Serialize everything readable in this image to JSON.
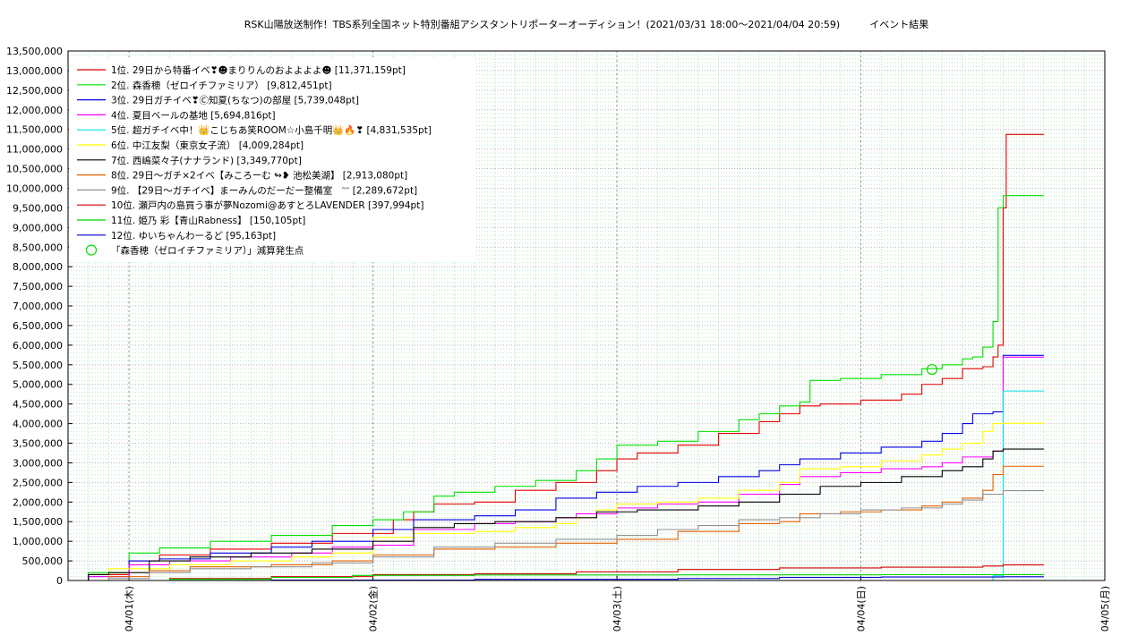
{
  "chart_data": {
    "type": "line",
    "title": "RSK山陽放送制作！TBS系列全国ネット特別番組アシスタントリポーターオーディション！(2021/03/31 18:00〜2021/04/04 20:59)　　　イベント結果",
    "xlabel": "",
    "ylabel": "",
    "x_ticks": [
      "04/01(木)",
      "04/02(金)",
      "04/03(土)",
      "04/04(日)",
      "04/05(月)"
    ],
    "x_range": [
      "2021/03/31 18:00",
      "2021/04/05 00:00"
    ],
    "ylim": [
      0,
      13500000
    ],
    "y_ticks": [
      "0",
      "500,000",
      "1,000,000",
      "1,500,000",
      "2,000,000",
      "2,500,000",
      "3,000,000",
      "3,500,000",
      "4,000,000",
      "4,500,000",
      "5,000,000",
      "5,500,000",
      "6,000,000",
      "6,500,000",
      "7,000,000",
      "7,500,000",
      "8,000,000",
      "8,500,000",
      "9,000,000",
      "9,500,000",
      "10,000,000",
      "10,500,000",
      "11,000,000",
      "11,500,000",
      "12,000,000",
      "12,500,000",
      "13,000,000",
      "13,500,000"
    ],
    "grid": true,
    "legend_position": "top-left",
    "series": [
      {
        "name": "1位. 29日から特番イベ❣☻まりりんのおよよよよ☻ [11,371,159pt]",
        "color": "#e00000",
        "points": [
          [
            0,
            0
          ],
          [
            2,
            150000
          ],
          [
            6,
            500000
          ],
          [
            9,
            650000
          ],
          [
            14,
            800000
          ],
          [
            20,
            950000
          ],
          [
            26,
            1200000
          ],
          [
            32,
            1550000
          ],
          [
            34,
            1750000
          ],
          [
            36,
            1950000
          ],
          [
            40,
            2000000
          ],
          [
            44,
            2300000
          ],
          [
            48,
            2500000
          ],
          [
            52,
            2800000
          ],
          [
            54,
            3100000
          ],
          [
            56,
            3250000
          ],
          [
            60,
            3450000
          ],
          [
            64,
            3750000
          ],
          [
            68,
            4050000
          ],
          [
            70,
            4250000
          ],
          [
            72,
            4450000
          ],
          [
            74,
            4500000
          ],
          [
            78,
            4600000
          ],
          [
            82,
            4750000
          ],
          [
            84,
            5000000
          ],
          [
            86,
            5150000
          ],
          [
            88,
            5400000
          ],
          [
            90,
            5450000
          ],
          [
            91,
            5700000
          ],
          [
            91.5,
            6000000
          ],
          [
            92,
            9500000
          ],
          [
            92.3,
            11371159
          ],
          [
            96,
            11371159
          ]
        ]
      },
      {
        "name": "2位. 森香穂（ゼロイチファミリア） [9,812,451pt]",
        "color": "#00e000",
        "points": [
          [
            0,
            0
          ],
          [
            2,
            200000
          ],
          [
            6,
            700000
          ],
          [
            9,
            830000
          ],
          [
            14,
            1000000
          ],
          [
            20,
            1150000
          ],
          [
            26,
            1400000
          ],
          [
            30,
            1550000
          ],
          [
            33,
            1750000
          ],
          [
            36,
            2150000
          ],
          [
            38,
            2250000
          ],
          [
            42,
            2400000
          ],
          [
            46,
            2550000
          ],
          [
            50,
            2800000
          ],
          [
            52,
            3100000
          ],
          [
            54,
            3450000
          ],
          [
            58,
            3550000
          ],
          [
            62,
            3800000
          ],
          [
            66,
            4100000
          ],
          [
            68,
            4250000
          ],
          [
            70,
            4450000
          ],
          [
            72,
            4550000
          ],
          [
            73,
            5100000
          ],
          [
            76,
            5150000
          ],
          [
            80,
            5250000
          ],
          [
            84,
            5400000
          ],
          [
            86,
            5500000
          ],
          [
            88,
            5650000
          ],
          [
            89,
            5700000
          ],
          [
            90,
            5950000
          ],
          [
            91,
            6600000
          ],
          [
            91.5,
            9500000
          ],
          [
            92,
            9812451
          ],
          [
            96,
            9812451
          ]
        ]
      },
      {
        "name": "3位. 29日ガチイベ❣Ⓒ知夏(ちなつ)の部屋 [5,739,048pt]",
        "color": "#0000e0",
        "points": [
          [
            0,
            0
          ],
          [
            2,
            100000
          ],
          [
            6,
            500000
          ],
          [
            9,
            550000
          ],
          [
            14,
            700000
          ],
          [
            20,
            850000
          ],
          [
            24,
            1000000
          ],
          [
            30,
            1300000
          ],
          [
            34,
            1550000
          ],
          [
            40,
            1650000
          ],
          [
            44,
            1800000
          ],
          [
            48,
            2100000
          ],
          [
            52,
            2250000
          ],
          [
            56,
            2400000
          ],
          [
            60,
            2500000
          ],
          [
            64,
            2650000
          ],
          [
            68,
            2800000
          ],
          [
            70,
            2950000
          ],
          [
            72,
            3100000
          ],
          [
            76,
            3250000
          ],
          [
            80,
            3400000
          ],
          [
            84,
            3550000
          ],
          [
            86,
            3750000
          ],
          [
            88,
            4000000
          ],
          [
            89,
            4250000
          ],
          [
            91,
            4300000
          ],
          [
            92,
            5739048
          ],
          [
            96,
            5739048
          ]
        ]
      },
      {
        "name": "4位. 夏目ベールの基地 [5,694,816pt]",
        "color": "#ff00ff",
        "points": [
          [
            0,
            0
          ],
          [
            2,
            100000
          ],
          [
            6,
            400000
          ],
          [
            10,
            500000
          ],
          [
            16,
            600000
          ],
          [
            22,
            700000
          ],
          [
            26,
            850000
          ],
          [
            30,
            900000
          ],
          [
            34,
            1300000
          ],
          [
            40,
            1450000
          ],
          [
            44,
            1500000
          ],
          [
            48,
            1600000
          ],
          [
            50,
            1700000
          ],
          [
            54,
            1850000
          ],
          [
            58,
            1950000
          ],
          [
            62,
            2000000
          ],
          [
            66,
            2200000
          ],
          [
            70,
            2450000
          ],
          [
            72,
            2650000
          ],
          [
            76,
            2750000
          ],
          [
            80,
            2850000
          ],
          [
            84,
            2900000
          ],
          [
            86,
            3000000
          ],
          [
            88,
            3150000
          ],
          [
            91,
            3300000
          ],
          [
            92,
            5694816
          ],
          [
            96,
            5694816
          ]
        ]
      },
      {
        "name": "5位. 超ガチイベ中！👑こじちあ笑ROOM☆小島千明👑🔥❣ [4,831,535pt]",
        "color": "#00e0e0",
        "points": [
          [
            0,
            0
          ],
          [
            91,
            120000
          ],
          [
            92,
            4831535
          ],
          [
            96,
            4831535
          ]
        ]
      },
      {
        "name": "6位. 中江友梨（東京女子流） [4,009,284pt]",
        "color": "#ffff00",
        "points": [
          [
            0,
            0
          ],
          [
            4,
            300000
          ],
          [
            10,
            400000
          ],
          [
            16,
            500000
          ],
          [
            22,
            600000
          ],
          [
            26,
            700000
          ],
          [
            30,
            1100000
          ],
          [
            34,
            1200000
          ],
          [
            40,
            1250000
          ],
          [
            44,
            1350000
          ],
          [
            48,
            1450000
          ],
          [
            50,
            1600000
          ],
          [
            52,
            1800000
          ],
          [
            54,
            1950000
          ],
          [
            58,
            2000000
          ],
          [
            62,
            2100000
          ],
          [
            66,
            2300000
          ],
          [
            70,
            2500000
          ],
          [
            72,
            2850000
          ],
          [
            76,
            2900000
          ],
          [
            80,
            3050000
          ],
          [
            84,
            3200000
          ],
          [
            86,
            3350000
          ],
          [
            88,
            3500000
          ],
          [
            90,
            3800000
          ],
          [
            91,
            4000000
          ],
          [
            92,
            4009284
          ],
          [
            96,
            4009284
          ]
        ]
      },
      {
        "name": "7位. 西嶋菜々子(ナナランド) [3,349,770pt]",
        "color": "#000000",
        "points": [
          [
            0,
            0
          ],
          [
            2,
            150000
          ],
          [
            4,
            200000
          ],
          [
            8,
            500000
          ],
          [
            12,
            600000
          ],
          [
            18,
            700000
          ],
          [
            24,
            800000
          ],
          [
            30,
            1000000
          ],
          [
            34,
            1350000
          ],
          [
            38,
            1450000
          ],
          [
            42,
            1500000
          ],
          [
            48,
            1600000
          ],
          [
            52,
            1750000
          ],
          [
            56,
            1800000
          ],
          [
            62,
            1900000
          ],
          [
            66,
            2000000
          ],
          [
            70,
            2200000
          ],
          [
            74,
            2400000
          ],
          [
            78,
            2500000
          ],
          [
            82,
            2650000
          ],
          [
            86,
            2800000
          ],
          [
            88,
            2900000
          ],
          [
            90,
            3100000
          ],
          [
            91,
            3300000
          ],
          [
            92,
            3349770
          ],
          [
            96,
            3349770
          ]
        ]
      },
      {
        "name": "8位. 29日〜ガチ×2イベ【みころーむ ↬❥ 池松美湖】 [2,913,080pt]",
        "color": "#e06000",
        "points": [
          [
            0,
            0
          ],
          [
            4,
            100000
          ],
          [
            8,
            250000
          ],
          [
            12,
            350000
          ],
          [
            20,
            400000
          ],
          [
            26,
            500000
          ],
          [
            30,
            650000
          ],
          [
            36,
            800000
          ],
          [
            42,
            850000
          ],
          [
            48,
            950000
          ],
          [
            54,
            1050000
          ],
          [
            60,
            1250000
          ],
          [
            66,
            1450000
          ],
          [
            70,
            1500000
          ],
          [
            72,
            1700000
          ],
          [
            76,
            1750000
          ],
          [
            80,
            1800000
          ],
          [
            84,
            1900000
          ],
          [
            86,
            2000000
          ],
          [
            88,
            2100000
          ],
          [
            90,
            2300000
          ],
          [
            91,
            2700000
          ],
          [
            92,
            2913080
          ],
          [
            96,
            2913080
          ]
        ]
      },
      {
        "name": "9位. 【29日〜ガチイベ】まーみんのだーだー整備室　ᵔᵔ [2,289,672pt]",
        "color": "#909090",
        "points": [
          [
            0,
            0
          ],
          [
            4,
            50000
          ],
          [
            8,
            200000
          ],
          [
            12,
            300000
          ],
          [
            18,
            350000
          ],
          [
            24,
            450000
          ],
          [
            30,
            600000
          ],
          [
            36,
            850000
          ],
          [
            42,
            950000
          ],
          [
            48,
            1050000
          ],
          [
            54,
            1150000
          ],
          [
            58,
            1300000
          ],
          [
            62,
            1400000
          ],
          [
            66,
            1550000
          ],
          [
            70,
            1600000
          ],
          [
            74,
            1700000
          ],
          [
            78,
            1800000
          ],
          [
            82,
            1850000
          ],
          [
            86,
            1950000
          ],
          [
            88,
            2050000
          ],
          [
            90,
            2200000
          ],
          [
            92,
            2289672
          ],
          [
            96,
            2289672
          ]
        ]
      },
      {
        "name": "10位. 瀬戸内の島買う事が夢Nozomi@あすとろLAVENDER [397,994pt]",
        "color": "#d00000",
        "points": [
          [
            0,
            0
          ],
          [
            10,
            50000
          ],
          [
            20,
            100000
          ],
          [
            30,
            150000
          ],
          [
            40,
            170000
          ],
          [
            50,
            220000
          ],
          [
            60,
            280000
          ],
          [
            70,
            320000
          ],
          [
            80,
            340000
          ],
          [
            90,
            370000
          ],
          [
            92,
            397994
          ],
          [
            96,
            397994
          ]
        ]
      },
      {
        "name": "11位. 姫乃 彩【青山Rabness】 [150,105pt]",
        "color": "#00d000",
        "points": [
          [
            0,
            0
          ],
          [
            10,
            30000
          ],
          [
            20,
            80000
          ],
          [
            28,
            130000
          ],
          [
            40,
            140000
          ],
          [
            60,
            145000
          ],
          [
            80,
            148000
          ],
          [
            92,
            150105
          ],
          [
            96,
            150105
          ]
        ]
      },
      {
        "name": "12位. ゆいちゃんわーるど [95,163pt]",
        "color": "#0000d0",
        "points": [
          [
            0,
            0
          ],
          [
            20,
            10000
          ],
          [
            40,
            30000
          ],
          [
            60,
            50000
          ],
          [
            70,
            80000
          ],
          [
            80,
            90000
          ],
          [
            92,
            95163
          ],
          [
            96,
            95163
          ]
        ]
      }
    ],
    "annotation": {
      "label": "「森香穂（ゼロイチファミリア）」減算発生点",
      "color": "#00e000",
      "point": [
        85,
        5380000
      ]
    }
  }
}
